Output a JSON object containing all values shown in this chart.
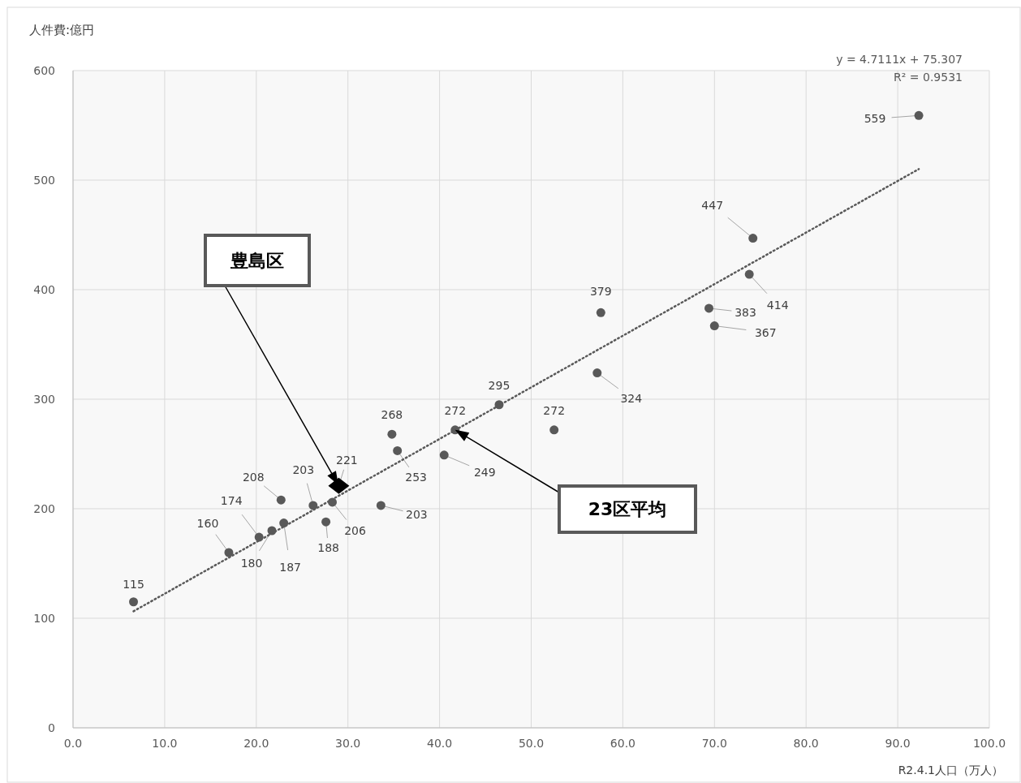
{
  "chart_data": {
    "type": "scatter",
    "ylabel": "人件費:億円",
    "xlabel": "R2.4.1人口（万人）",
    "xlim": [
      0,
      100
    ],
    "xticks": [
      {
        "value": 0,
        "label": "0.0"
      },
      {
        "value": 10,
        "label": "10.0"
      },
      {
        "value": 20,
        "label": "20.0"
      },
      {
        "value": 30,
        "label": "30.0"
      },
      {
        "value": 40,
        "label": "40.0"
      },
      {
        "value": 50,
        "label": "50.0"
      },
      {
        "value": 60,
        "label": "60.0"
      },
      {
        "value": 70,
        "label": "70.0"
      },
      {
        "value": 80,
        "label": "80.0"
      },
      {
        "value": 90,
        "label": "90.0"
      },
      {
        "value": 100,
        "label": "100.0"
      }
    ],
    "ylim": [
      0,
      600
    ],
    "yticks": [
      0,
      100,
      200,
      300,
      400,
      500,
      600
    ],
    "grid": true,
    "series": [
      {
        "color": "#595959",
        "marker": "circle",
        "x": [
          6.6,
          17.0,
          20.3,
          21.7,
          23.0,
          22.7,
          26.2,
          27.6,
          28.3,
          34.8,
          35.4,
          33.6,
          40.5,
          41.7,
          46.5,
          52.5,
          57.6,
          57.2,
          69.4,
          70.0,
          73.8,
          74.2,
          92.3
        ],
        "values": [
          115,
          160,
          174,
          180,
          187,
          208,
          203,
          188,
          206,
          268,
          253,
          203,
          249,
          272,
          295,
          272,
          379,
          324,
          383,
          367,
          414,
          447,
          559
        ],
        "value_labels": [
          "115",
          "160",
          "174",
          "180",
          "187",
          "208",
          "203",
          "188",
          "206",
          "268",
          "253",
          "203",
          "249",
          "272",
          "295",
          "272",
          "379",
          "324",
          "383",
          "367",
          "414",
          "447",
          "559"
        ]
      },
      {
        "color": "#000000",
        "marker": "diamond",
        "x": [
          29.0
        ],
        "values": [
          221
        ],
        "value_labels": [
          "221"
        ]
      },
      {
        "type": "line",
        "color": "#595959",
        "marker": "none",
        "line_style": "dotted",
        "x": [
          6.6,
          92.3
        ],
        "values": [
          106.4,
          510.1
        ]
      }
    ],
    "annotations": [
      "豊島区",
      "23区平均",
      "y = 4.7111x + 75.307",
      "R² = 0.9531"
    ]
  }
}
